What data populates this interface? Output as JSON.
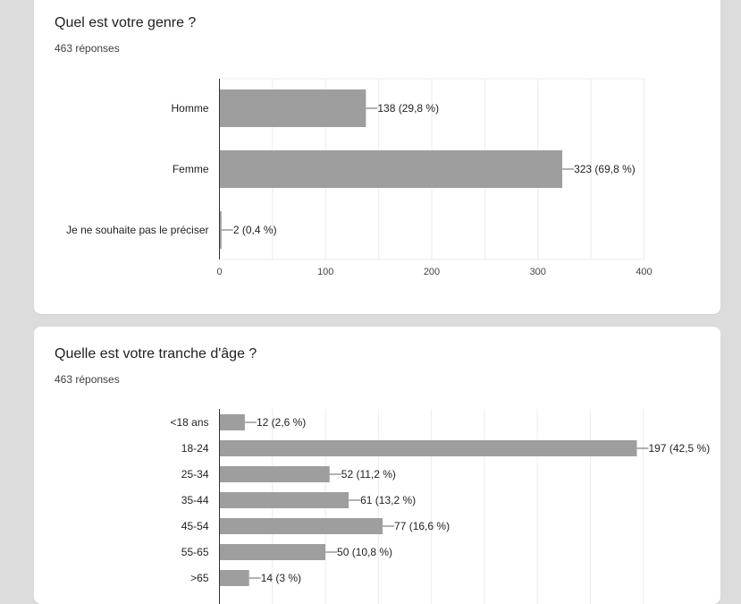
{
  "colors": {
    "bar": "#9e9e9e",
    "grid": "#ebebeb",
    "axis": "#333333",
    "background": "#dcdcdc",
    "card": "#ffffff"
  },
  "questions": [
    {
      "title": "Quel est votre genre ?",
      "responses": "463 réponses"
    },
    {
      "title": "Quelle est votre tranche d'âge ?",
      "responses": "463 réponses"
    }
  ],
  "chart_data": [
    {
      "type": "bar",
      "orientation": "horizontal",
      "categories": [
        "Homme",
        "Femme",
        "Je ne souhaite pas le préciser"
      ],
      "values": [
        138,
        323,
        2
      ],
      "data_labels": [
        "138 (29,8 %)",
        "323 (69,8 %)",
        "2 (0,4 %)"
      ],
      "xticks": [
        0,
        100,
        200,
        300,
        400
      ],
      "xlim": [
        0,
        400
      ],
      "grid": true
    },
    {
      "type": "bar",
      "orientation": "horizontal",
      "categories": [
        "<18 ans",
        "18-24",
        "25-34",
        "35-44",
        "45-54",
        "55-65",
        ">65"
      ],
      "values": [
        12,
        197,
        52,
        61,
        77,
        50,
        14
      ],
      "data_labels": [
        "12 (2,6 %)",
        "197 (42,5 %)",
        "52 (11,2 %)",
        "61 (13,2 %)",
        "77 (16,6 %)",
        "50 (10,8 %)",
        "14 (3 %)"
      ],
      "xlim": [
        0,
        200
      ],
      "grid": true
    }
  ]
}
